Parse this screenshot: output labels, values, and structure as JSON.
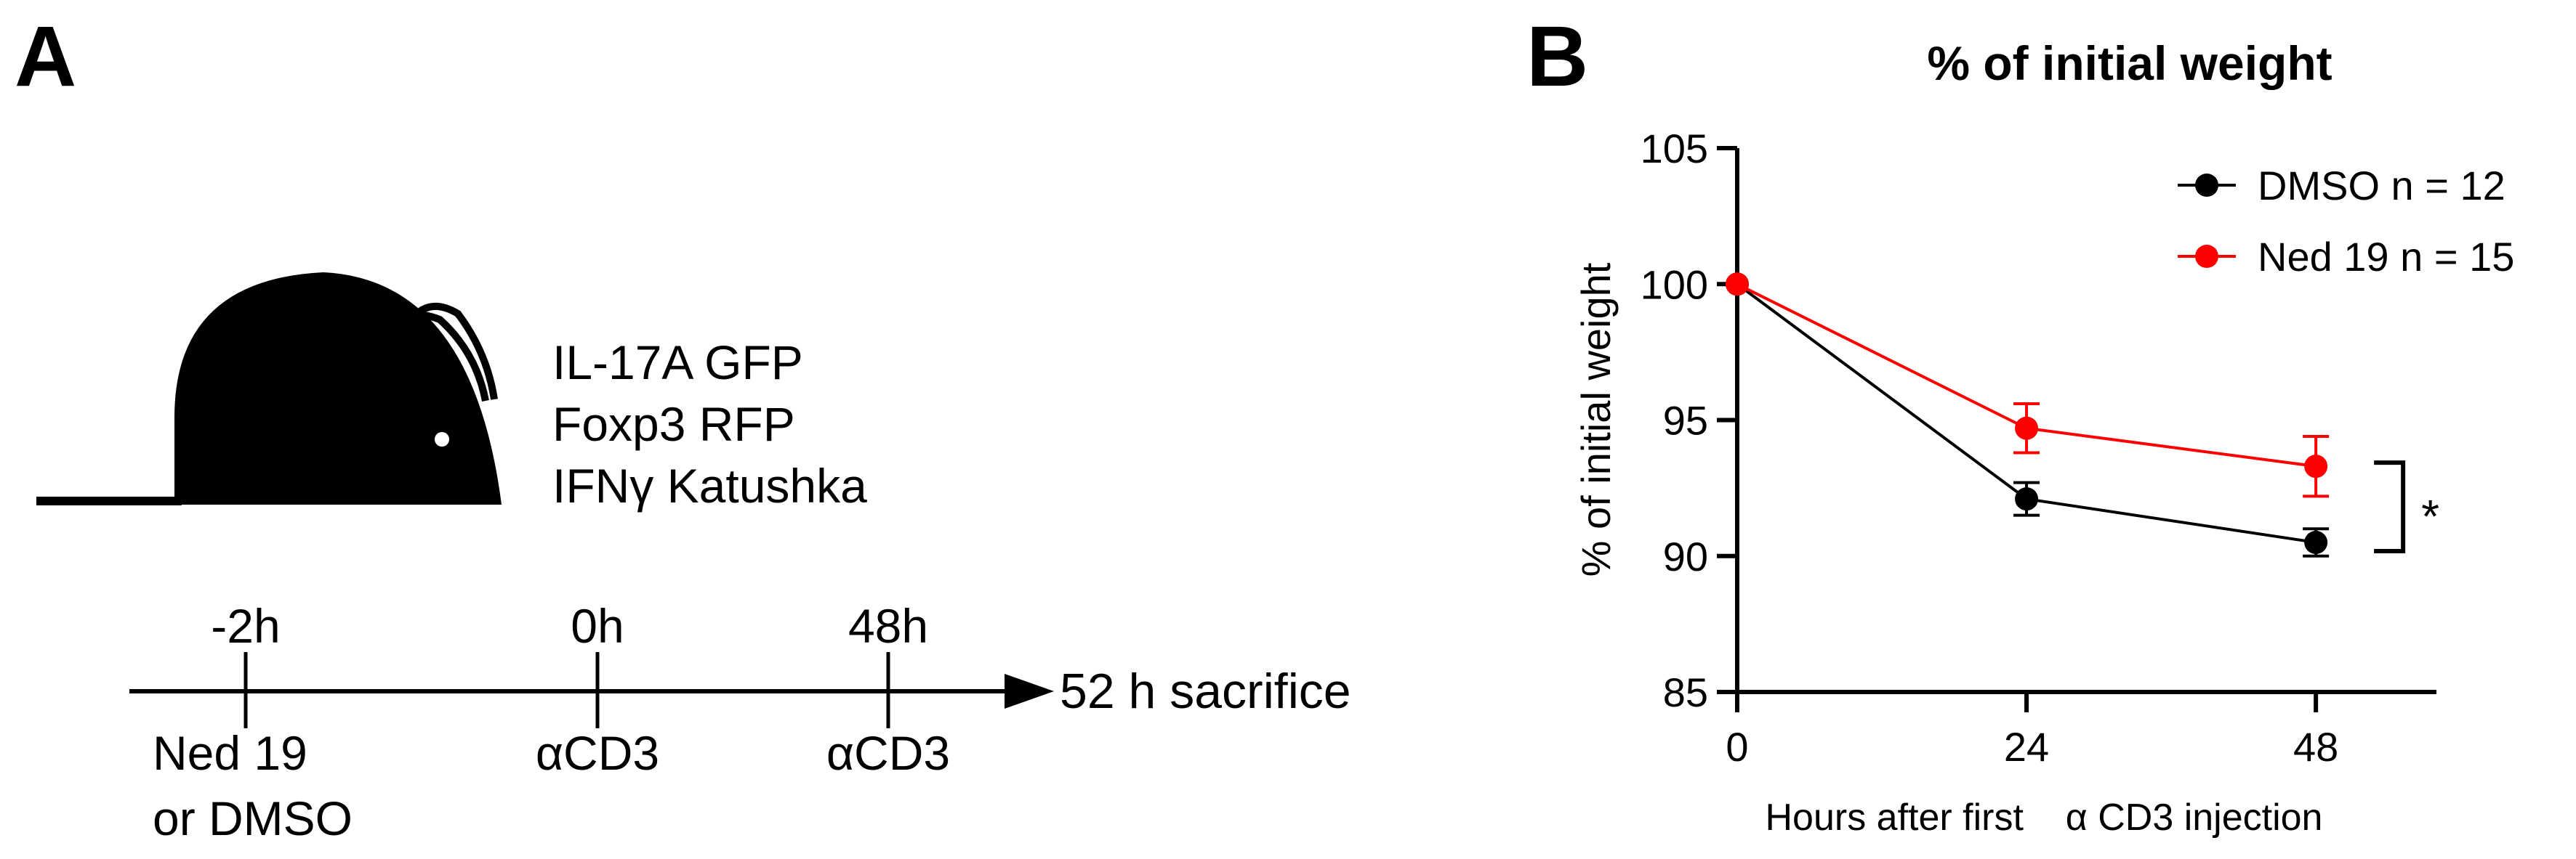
{
  "panel_a": {
    "label": "A",
    "mouse_lines": [
      "IL-17A GFP",
      "Foxp3 RFP",
      "IFNγ Katushka"
    ],
    "timeline": {
      "end_label": "52 h sacrifice",
      "events": [
        {
          "time": "-2h",
          "labels": [
            "Ned 19",
            "or DMSO"
          ]
        },
        {
          "time": "0h",
          "labels": [
            "αCD3"
          ]
        },
        {
          "time": "48h",
          "labels": [
            "αCD3"
          ]
        }
      ]
    }
  },
  "panel_b": {
    "label": "B"
  },
  "chart_data": {
    "type": "line",
    "title": "% of initial weight",
    "xlabel": "Hours after first    α CD3 injection",
    "ylabel": "% of initial weight",
    "x": [
      0,
      24,
      48
    ],
    "xticks": [
      0,
      24,
      48
    ],
    "xlim": [
      0,
      58
    ],
    "yticks": [
      85,
      90,
      95,
      100,
      105
    ],
    "ylim": [
      85,
      105
    ],
    "grid": false,
    "legend_position": "top-right",
    "series": [
      {
        "name": "DMSO n = 12",
        "color": "#000000",
        "values": [
          100,
          92.1,
          90.5
        ],
        "errors": [
          0,
          0.6,
          0.5
        ]
      },
      {
        "name": "Ned 19 n = 15",
        "color": "#ff0000",
        "values": [
          100,
          94.7,
          93.3
        ],
        "errors": [
          0,
          0.9,
          1.1
        ]
      }
    ],
    "annotation": {
      "text": "*",
      "between": [
        "DMSO n = 12",
        "Ned 19 n = 15"
      ],
      "at_x": 48
    }
  }
}
